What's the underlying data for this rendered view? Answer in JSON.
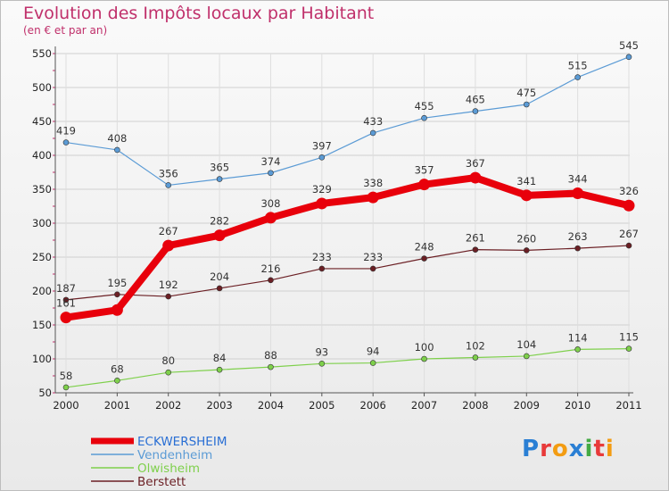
{
  "chart_data": {
    "type": "line",
    "title": "Evolution des Impôts locaux par Habitant",
    "subtitle": "(en € et par an)",
    "categories": [
      "2000",
      "2001",
      "2002",
      "2003",
      "2004",
      "2005",
      "2006",
      "2007",
      "2008",
      "2009",
      "2010",
      "2011"
    ],
    "ylim": [
      50,
      550
    ],
    "yticks": [
      50,
      100,
      150,
      200,
      250,
      300,
      350,
      400,
      450,
      500,
      550
    ],
    "grid": true,
    "legend_position": "bottom-left",
    "series": [
      {
        "name": "ECKWERSHEIM",
        "color": "#e8000b",
        "values": [
          161,
          172,
          267,
          282,
          308,
          329,
          338,
          357,
          367,
          341,
          344,
          326
        ],
        "labels": [
          "161",
          "",
          "267",
          "282",
          "308",
          "329",
          "338",
          "357",
          "367",
          "341",
          "344",
          "326"
        ],
        "bold": true
      },
      {
        "name": "Vendenheim",
        "color": "#5b9bd5",
        "values": [
          419,
          408,
          356,
          365,
          374,
          397,
          433,
          455,
          465,
          475,
          515,
          545
        ],
        "labels": [
          "419",
          "408",
          "356",
          "365",
          "374",
          "397",
          "433",
          "455",
          "465",
          "475",
          "515",
          "545"
        ]
      },
      {
        "name": "Olwisheim",
        "color": "#7ed04b",
        "values": [
          58,
          68,
          80,
          84,
          88,
          93,
          94,
          100,
          102,
          104,
          114,
          115
        ],
        "labels": [
          "58",
          "68",
          "80",
          "84",
          "88",
          "93",
          "94",
          "100",
          "102",
          "104",
          "114",
          "115"
        ]
      },
      {
        "name": "Berstett",
        "color": "#6b1f24",
        "values": [
          187,
          195,
          192,
          204,
          216,
          233,
          233,
          248,
          261,
          260,
          263,
          267
        ],
        "labels": [
          "187",
          "195",
          "192",
          "204",
          "216",
          "233",
          "233",
          "248",
          "261",
          "260",
          "263",
          "267"
        ]
      }
    ]
  },
  "logo": {
    "text": "Proxiti",
    "letters": [
      "P",
      "r",
      "o",
      "x",
      "i",
      "t",
      "i"
    ],
    "colors": [
      "#2a7fd4",
      "#e83a3a",
      "#f39c12",
      "#2a7fd4",
      "#44aa44",
      "#e83a3a",
      "#f39c12"
    ]
  }
}
